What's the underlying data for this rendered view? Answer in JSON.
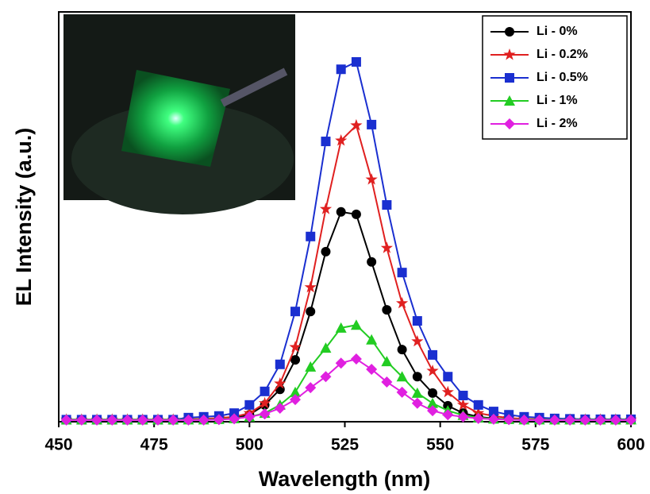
{
  "chart_data": {
    "type": "line",
    "xlabel": "Wavelength (nm)",
    "ylabel": "EL Intensity (a.u.)",
    "x": [
      452,
      456,
      460,
      464,
      468,
      472,
      476,
      480,
      484,
      488,
      492,
      496,
      500,
      504,
      508,
      512,
      516,
      520,
      524,
      528,
      532,
      536,
      540,
      544,
      548,
      552,
      556,
      560,
      564,
      568,
      572,
      576,
      580,
      584,
      588,
      592,
      596,
      600
    ],
    "xlim": [
      450,
      600
    ],
    "xticks": [
      450,
      475,
      500,
      525,
      550,
      575,
      600
    ],
    "ylim": [
      0,
      100
    ],
    "legend": "upper right",
    "series": [
      {
        "name": "Li - 0%",
        "color": "#000000",
        "marker": "circle",
        "values": [
          0.5,
          0.5,
          0.5,
          0.5,
          0.5,
          0.5,
          0.5,
          0.5,
          0.5,
          0.6,
          0.7,
          0.8,
          1.7,
          4.1,
          7.9,
          15.1,
          26.9,
          41.5,
          51.2,
          50.6,
          39,
          27.3,
          17.6,
          11,
          7,
          3.9,
          2.1,
          1.2,
          0.8,
          0.6,
          0.5,
          0.5,
          0.5,
          0.5,
          0.5,
          0.5,
          0.5,
          0.5
        ]
      },
      {
        "name": "Li - 0.2%",
        "color": "#e02020",
        "marker": "star",
        "values": [
          0.5,
          0.5,
          0.5,
          0.5,
          0.5,
          0.5,
          0.5,
          0.5,
          0.6,
          0.7,
          0.9,
          1.2,
          2.1,
          4.5,
          9.3,
          18.2,
          32.8,
          51.9,
          68.6,
          72.3,
          59.1,
          42.4,
          28.9,
          19.6,
          12.4,
          7.2,
          4.1,
          2.1,
          1.4,
          0.9,
          0.7,
          0.6,
          0.5,
          0.5,
          0.5,
          0.5,
          0.5,
          0.5
        ]
      },
      {
        "name": "Li - 0.5%",
        "color": "#1a2fd0",
        "marker": "square",
        "values": [
          0.5,
          0.5,
          0.5,
          0.5,
          0.5,
          0.5,
          0.5,
          0.5,
          1.0,
          1.2,
          1.4,
          2.1,
          4.1,
          7.4,
          14,
          26.9,
          45.2,
          68.4,
          86,
          87.8,
          72.5,
          52.9,
          36.4,
          24.6,
          16.3,
          11,
          6.4,
          4.1,
          2.5,
          1.7,
          1.2,
          1.0,
          0.8,
          0.7,
          0.6,
          0.6,
          0.6,
          0.6
        ]
      },
      {
        "name": "Li - 1%",
        "color": "#22cc22",
        "marker": "triangle",
        "values": [
          0.5,
          0.5,
          0.5,
          0.5,
          0.5,
          0.5,
          0.5,
          0.5,
          0.5,
          0.5,
          0.6,
          0.8,
          1.2,
          2.1,
          4.1,
          7.2,
          13.4,
          18,
          22.9,
          23.6,
          20,
          14.7,
          11,
          7,
          4.5,
          2.7,
          1.6,
          1,
          0.7,
          0.6,
          0.5,
          0.5,
          0.5,
          0.5,
          0.5,
          0.5,
          0.5,
          0.5
        ]
      },
      {
        "name": "Li - 2%",
        "color": "#e020e0",
        "marker": "diamond",
        "values": [
          0.4,
          0.4,
          0.4,
          0.4,
          0.4,
          0.4,
          0.4,
          0.4,
          0.4,
          0.4,
          0.5,
          0.7,
          1.2,
          1.9,
          3.3,
          5.4,
          8.3,
          11,
          14.3,
          15.3,
          12.8,
          9.7,
          7.2,
          4.5,
          2.7,
          1.7,
          1.2,
          0.8,
          0.6,
          0.5,
          0.4,
          0.4,
          0.4,
          0.4,
          0.4,
          0.4,
          0.4,
          0.4
        ]
      }
    ]
  }
}
